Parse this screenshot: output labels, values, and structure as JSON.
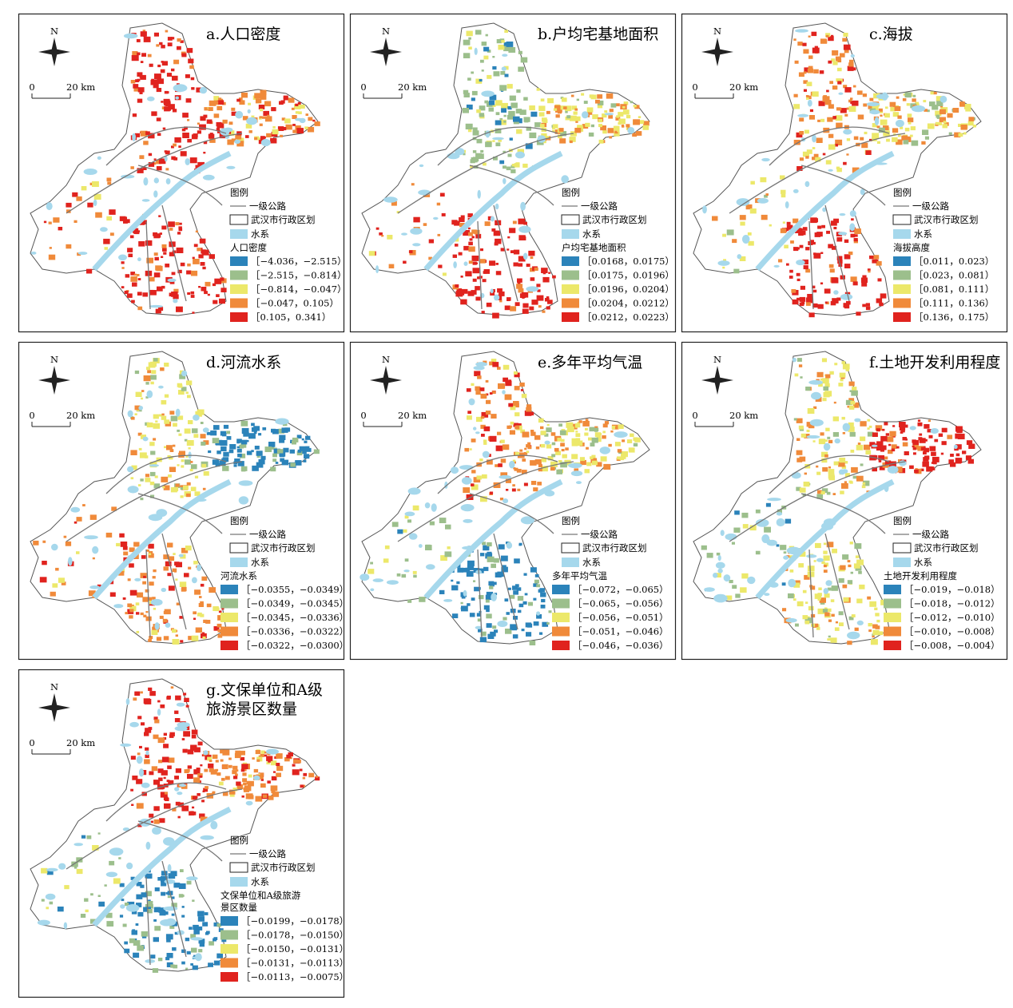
{
  "panels": [
    {
      "title": [
        "a.人口密度"
      ],
      "north": "N",
      "scale_zero": "0",
      "scale_label": "20 km",
      "legend_title": "图例",
      "legend_items": [
        "一级公路",
        "武汉市行政区划",
        "水系"
      ],
      "field": [
        "人口密度"
      ],
      "classes": [
        {
          "label": "［−4.036，−2.515）",
          "color": "#2b83ba"
        },
        {
          "label": "［−2.515，−0.814）",
          "color": "#9cbf8c"
        },
        {
          "label": "［−0.814，−0.047）",
          "color": "#ece86a"
        },
        {
          "label": "［−0.047，0.105）",
          "color": "#f08a3a"
        },
        {
          "label": "［0.105，0.341）",
          "color": "#e0231e"
        }
      ]
    },
    {
      "title": [
        "b.户均宅基地面积"
      ],
      "north": "N",
      "scale_zero": "0",
      "scale_label": "20 km",
      "legend_title": "图例",
      "legend_items": [
        "一级公路",
        "武汉市行政区划",
        "水系"
      ],
      "field": [
        "户均宅基地面积"
      ],
      "classes": [
        {
          "label": "［0.0168，0.0175）",
          "color": "#2b83ba"
        },
        {
          "label": "［0.0175，0.0196）",
          "color": "#9cbf8c"
        },
        {
          "label": "［0.0196，0.0204）",
          "color": "#ece86a"
        },
        {
          "label": "［0.0204，0.0212）",
          "color": "#f08a3a"
        },
        {
          "label": "［0.0212，0.0223）",
          "color": "#e0231e"
        }
      ]
    },
    {
      "title": [
        "c.海拔"
      ],
      "north": "N",
      "scale_zero": "0",
      "scale_label": "20 km",
      "legend_title": "图例",
      "legend_items": [
        "一级公路",
        "武汉市行政区划",
        "水系"
      ],
      "field": [
        "海拔高度"
      ],
      "classes": [
        {
          "label": "［0.011，0.023）",
          "color": "#2b83ba"
        },
        {
          "label": "［0.023，0.081）",
          "color": "#9cbf8c"
        },
        {
          "label": "［0.081，0.111）",
          "color": "#ece86a"
        },
        {
          "label": "［0.111，0.136）",
          "color": "#f08a3a"
        },
        {
          "label": "［0.136，0.175）",
          "color": "#e0231e"
        }
      ]
    },
    {
      "title": [
        "d.河流水系"
      ],
      "north": "N",
      "scale_zero": "0",
      "scale_label": "20 km",
      "legend_title": "图例",
      "legend_items": [
        "一级公路",
        "武汉市行政区划",
        "水系"
      ],
      "field": [
        "河流水系"
      ],
      "classes": [
        {
          "label": "［−0.0355，−0.0349）",
          "color": "#2b83ba"
        },
        {
          "label": "［−0.0349，−0.0345）",
          "color": "#9cbf8c"
        },
        {
          "label": "［−0.0345，−0.0336）",
          "color": "#ece86a"
        },
        {
          "label": "［−0.0336，−0.0322）",
          "color": "#f08a3a"
        },
        {
          "label": "［−0.0322，−0.0300）",
          "color": "#e0231e"
        }
      ]
    },
    {
      "title": [
        "e.多年平均气温"
      ],
      "north": "N",
      "scale_zero": "0",
      "scale_label": "20 km",
      "legend_title": "图例",
      "legend_items": [
        "一级公路",
        "武汉市行政区划",
        "水系"
      ],
      "field": [
        "多年平均气温"
      ],
      "classes": [
        {
          "label": "［−0.072，−0.065）",
          "color": "#2b83ba"
        },
        {
          "label": "［−0.065，−0.056）",
          "color": "#9cbf8c"
        },
        {
          "label": "［−0.056，−0.051）",
          "color": "#ece86a"
        },
        {
          "label": "［−0.051，−0.046）",
          "color": "#f08a3a"
        },
        {
          "label": "［−0.046，−0.036）",
          "color": "#e0231e"
        }
      ]
    },
    {
      "title": [
        "f.土地开发利用程度"
      ],
      "north": "N",
      "scale_zero": "0",
      "scale_label": "20 km",
      "legend_title": "图例",
      "legend_items": [
        "一级公路",
        "武汉市行政区划",
        "水系"
      ],
      "field": [
        "土地开发利用程度"
      ],
      "classes": [
        {
          "label": "［−0.019，−0.018）",
          "color": "#2b83ba"
        },
        {
          "label": "［−0.018，−0.012）",
          "color": "#9cbf8c"
        },
        {
          "label": "［−0.012，−0.010）",
          "color": "#ece86a"
        },
        {
          "label": "［−0.010，−0.008）",
          "color": "#f08a3a"
        },
        {
          "label": "［−0.008，−0.004）",
          "color": "#e0231e"
        }
      ]
    },
    {
      "title": [
        "g.文保单位和A级",
        "旅游景区数量"
      ],
      "north": "N",
      "scale_zero": "0",
      "scale_label": "20 km",
      "legend_title": "图例",
      "legend_items": [
        "一级公路",
        "武汉市行政区划",
        "水系"
      ],
      "field": [
        "文保单位和A级旅游",
        "景区数量"
      ],
      "classes": [
        {
          "label": "［−0.0199，−0.0178）",
          "color": "#2b83ba"
        },
        {
          "label": "［−0.0178，−0.0150）",
          "color": "#9cbf8c"
        },
        {
          "label": "［−0.0150，−0.0131）",
          "color": "#ece86a"
        },
        {
          "label": "［−0.0131，−0.0113）",
          "color": "#f08a3a"
        },
        {
          "label": "［−0.0113，−0.0075）",
          "color": "#e0231e"
        }
      ]
    }
  ]
}
